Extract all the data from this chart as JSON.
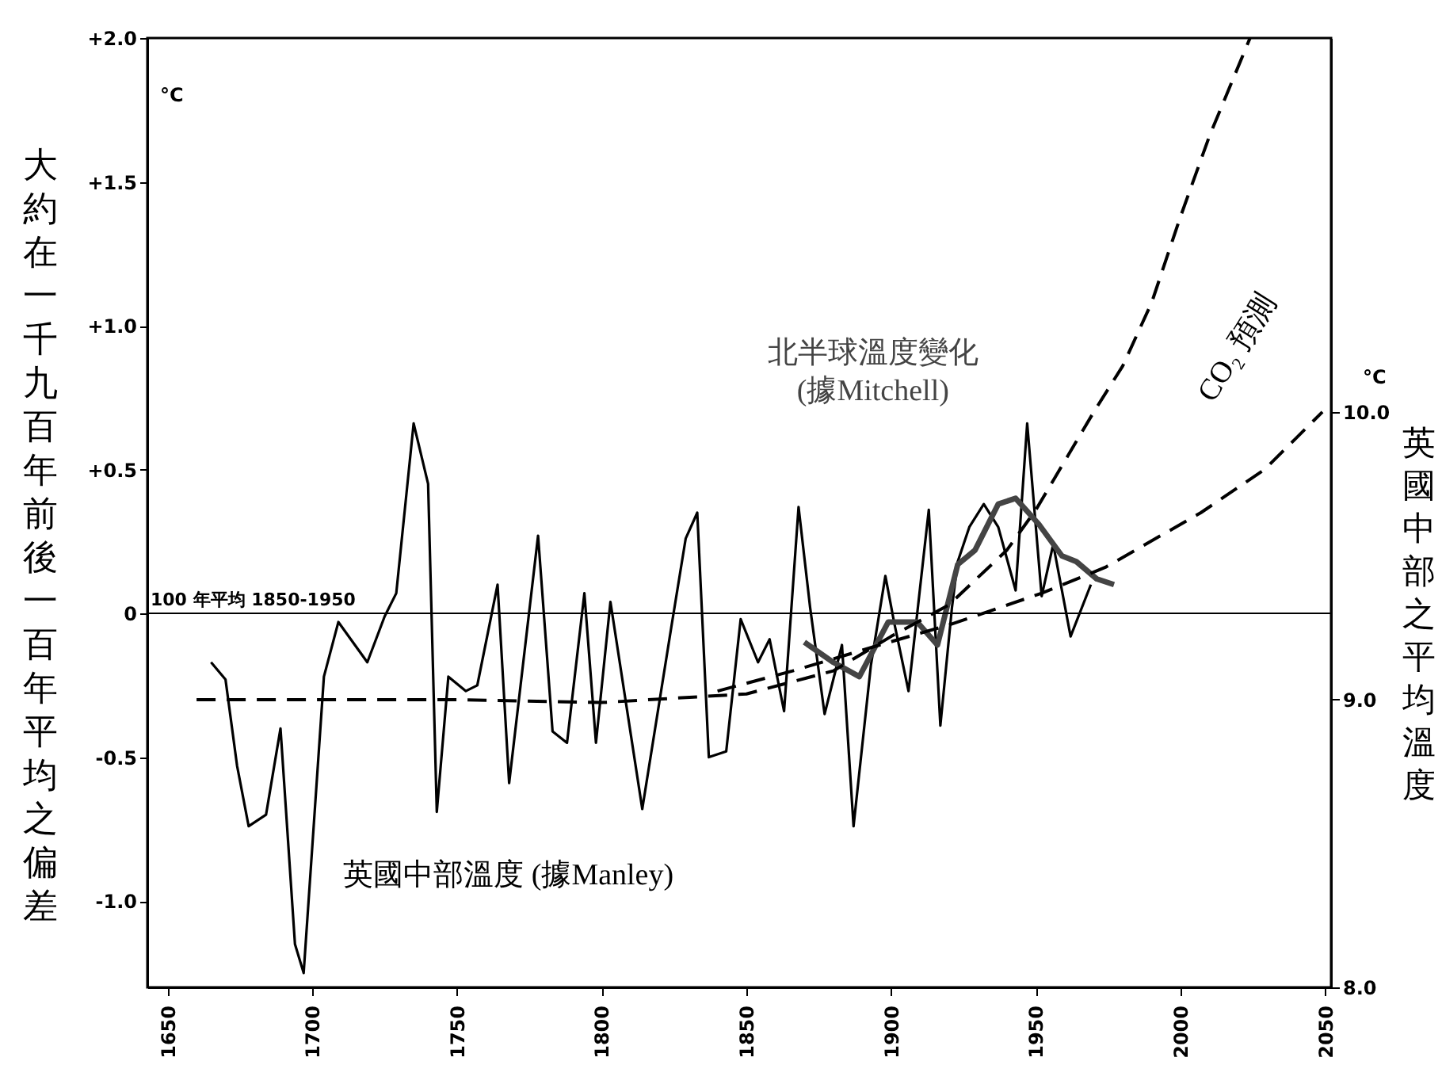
{
  "chart_data": {
    "type": "line",
    "ylabel": "大約在一千九百年前後一百年平均之偏差",
    "y2label": "英國中部之平均溫度",
    "annotations": [
      "°C",
      "°C"
    ],
    "xlim": [
      1643,
      2052
    ],
    "xticks": [
      1650,
      1700,
      1750,
      1800,
      1850,
      1900,
      1950,
      2000,
      2050
    ],
    "ylim": [
      -1.3,
      2.0
    ],
    "yticks": [
      {
        "value": -1,
        "label": "-1.0"
      },
      {
        "value": -0.5,
        "label": "-0.5"
      },
      0,
      {
        "value": 0.5,
        "label": "+0.5"
      },
      {
        "value": 1,
        "label": "+1.0"
      },
      {
        "value": 1.5,
        "label": "+1.5"
      },
      {
        "value": 2,
        "label": "+2.0"
      }
    ],
    "y2lim": [
      8.0,
      11.3
    ],
    "y2ticks": [
      {
        "value": 8,
        "label": "8.0"
      },
      {
        "value": 9,
        "label": "9.0"
      },
      {
        "value": 10,
        "label": "10.0"
      }
    ],
    "ref_lines": [
      {
        "axis": "y",
        "value": 0,
        "label": "100 年平均 1850-1950",
        "color": "#000000"
      }
    ],
    "series": [
      {
        "name": "英國中部溫度 (據Manley)",
        "color": "#000000",
        "line_style": "solid",
        "x": [
          1665,
          1670,
          1674,
          1678,
          1684,
          1689,
          1694,
          1697,
          1704,
          1709,
          1719,
          1725,
          1729,
          1735,
          1740,
          1743,
          1747,
          1753,
          1757,
          1764,
          1768,
          1778,
          1783,
          1788,
          1794,
          1798,
          1803,
          1814,
          1824,
          1829,
          1833,
          1837,
          1843,
          1848,
          1854,
          1858,
          1863,
          1868,
          1872,
          1877,
          1883,
          1887,
          1893,
          1898,
          1901,
          1906,
          1913,
          1917,
          1921,
          1923,
          1927,
          1932,
          1937,
          1943,
          1947,
          1952,
          1956,
          1962,
          1969
        ],
        "values": [
          -0.17,
          -0.23,
          -0.53,
          -0.74,
          -0.7,
          -0.4,
          -1.15,
          -1.25,
          -0.22,
          -0.03,
          -0.17,
          -0.01,
          0.07,
          0.66,
          0.45,
          -0.69,
          -0.22,
          -0.27,
          -0.25,
          0.1,
          -0.59,
          0.27,
          -0.41,
          -0.45,
          0.07,
          -0.45,
          0.04,
          -0.68,
          -0.05,
          0.26,
          0.35,
          -0.5,
          -0.48,
          -0.02,
          -0.17,
          -0.09,
          -0.34,
          0.37,
          0.02,
          -0.35,
          -0.11,
          -0.74,
          -0.18,
          0.13,
          -0.03,
          -0.27,
          0.36,
          -0.39,
          0.02,
          0.18,
          0.3,
          0.38,
          0.3,
          0.08,
          0.66,
          0.06,
          0.24,
          -0.08,
          0.1
        ]
      },
      {
        "name": "北半球溫度變化\n(據Mitchell)",
        "color": "#444444",
        "line_style": "solid",
        "x": [
          1870,
          1880,
          1889,
          1899,
          1909,
          1916,
          1923,
          1929,
          1937,
          1943,
          1951,
          1959,
          1964,
          1971,
          1977
        ],
        "values": [
          -0.1,
          -0.17,
          -0.22,
          -0.03,
          -0.03,
          -0.11,
          0.17,
          0.22,
          0.38,
          0.4,
          0.31,
          0.2,
          0.18,
          0.12,
          0.1
        ]
      },
      {
        "name": "CO₂ 預測",
        "color": "#000000",
        "line_style": "dashed",
        "x": [
          1660,
          1700,
          1750,
          1800,
          1850,
          1880,
          1900,
          1920,
          1940,
          1950,
          1960,
          1970,
          1980,
          1990,
          2000,
          2010,
          2024
        ],
        "values": [
          -0.3,
          -0.3,
          -0.3,
          -0.31,
          -0.28,
          -0.2,
          -0.08,
          0.03,
          0.22,
          0.36,
          0.53,
          0.7,
          0.86,
          1.08,
          1.38,
          1.66,
          2.0
        ]
      },
      {
        "axis": "y2",
        "color": "#000000",
        "line_style": "dashed",
        "x": [
          1840,
          1866,
          1896,
          1920,
          1952,
          1974,
          2007,
          2029,
          2049
        ],
        "values": [
          9.03,
          9.1,
          9.19,
          9.26,
          9.37,
          9.46,
          9.65,
          9.8,
          10.0
        ]
      }
    ]
  }
}
